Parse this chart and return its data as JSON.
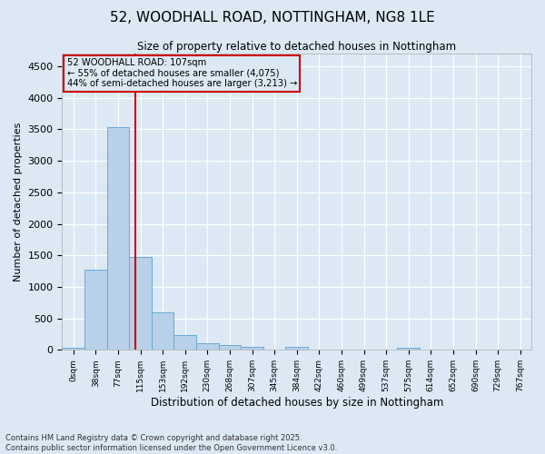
{
  "title_line1": "52, WOODHALL ROAD, NOTTINGHAM, NG8 1LE",
  "title_line2": "Size of property relative to detached houses in Nottingham",
  "xlabel": "Distribution of detached houses by size in Nottingham",
  "ylabel": "Number of detached properties",
  "bar_color": "#b8d0e8",
  "bar_edge_color": "#6aaad4",
  "background_color": "#dce9f5",
  "grid_color": "#ffffff",
  "annotation_box_color": "#cc0000",
  "vline_color": "#cc0000",
  "bin_labels": [
    "0sqm",
    "38sqm",
    "77sqm",
    "115sqm",
    "153sqm",
    "192sqm",
    "230sqm",
    "268sqm",
    "307sqm",
    "345sqm",
    "384sqm",
    "422sqm",
    "460sqm",
    "499sqm",
    "537sqm",
    "575sqm",
    "614sqm",
    "652sqm",
    "690sqm",
    "729sqm",
    "767sqm"
  ],
  "bar_values": [
    30,
    1280,
    3530,
    1480,
    590,
    240,
    110,
    70,
    45,
    0,
    50,
    0,
    0,
    0,
    0,
    40,
    0,
    0,
    0,
    0,
    0
  ],
  "ylim": [
    0,
    4700
  ],
  "yticks": [
    0,
    500,
    1000,
    1500,
    2000,
    2500,
    3000,
    3500,
    4000,
    4500
  ],
  "annotation_line1": "52 WOODHALL ROAD: 107sqm",
  "annotation_line2": "← 55% of detached houses are smaller (4,075)",
  "annotation_line3": "44% of semi-detached houses are larger (3,213) →",
  "vline_x": 2.79,
  "footer_line1": "Contains HM Land Registry data © Crown copyright and database right 2025.",
  "footer_line2": "Contains public sector information licensed under the Open Government Licence v3.0."
}
